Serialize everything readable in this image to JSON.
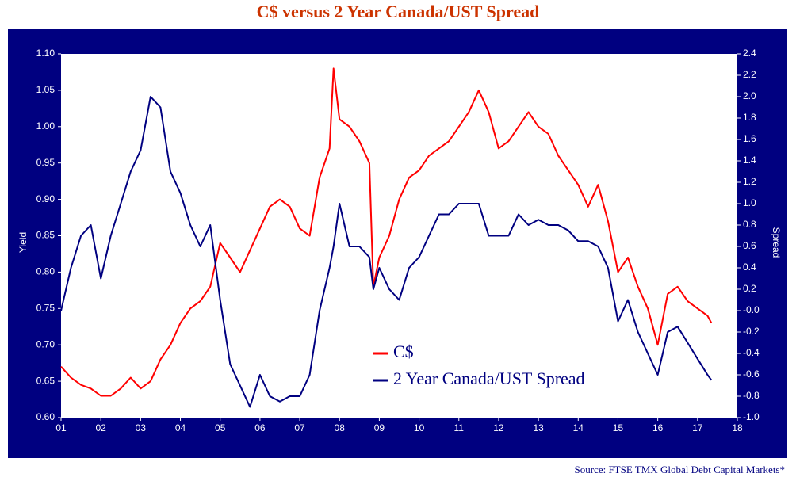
{
  "chart_data": {
    "type": "line",
    "title": "C$ versus 2 Year Canada/UST Spread",
    "y_label": "Yield",
    "y2_label": "Spread",
    "source": "Source: FTSE TMX Global Debt Capital Markets*",
    "x": [
      1.0,
      1.25,
      1.5,
      1.75,
      2.0,
      2.25,
      2.5,
      2.75,
      3.0,
      3.25,
      3.5,
      3.75,
      4.0,
      4.25,
      4.5,
      4.75,
      5.0,
      5.25,
      5.5,
      5.75,
      6.0,
      6.25,
      6.5,
      6.75,
      7.0,
      7.25,
      7.5,
      7.75,
      7.85,
      8.0,
      8.25,
      8.5,
      8.75,
      8.85,
      9.0,
      9.25,
      9.5,
      9.75,
      10.0,
      10.25,
      10.5,
      10.75,
      11.0,
      11.25,
      11.5,
      11.75,
      12.0,
      12.25,
      12.5,
      12.75,
      13.0,
      13.25,
      13.5,
      13.75,
      14.0,
      14.25,
      14.5,
      14.75,
      15.0,
      15.25,
      15.5,
      15.75,
      16.0,
      16.25,
      16.5,
      16.75,
      17.0,
      17.25,
      17.35
    ],
    "series": [
      {
        "name": "C$",
        "color": "#ff0000",
        "axis": "y",
        "values": [
          0.67,
          0.655,
          0.645,
          0.64,
          0.63,
          0.63,
          0.64,
          0.655,
          0.64,
          0.65,
          0.68,
          0.7,
          0.73,
          0.75,
          0.76,
          0.78,
          0.84,
          0.82,
          0.8,
          0.83,
          0.86,
          0.89,
          0.9,
          0.89,
          0.86,
          0.85,
          0.93,
          0.97,
          1.08,
          1.01,
          1.0,
          0.98,
          0.95,
          0.78,
          0.82,
          0.85,
          0.9,
          0.93,
          0.94,
          0.96,
          0.97,
          0.98,
          1.0,
          1.02,
          1.05,
          1.02,
          0.97,
          0.98,
          1.0,
          1.02,
          1.0,
          0.99,
          0.96,
          0.94,
          0.92,
          0.89,
          0.92,
          0.87,
          0.8,
          0.82,
          0.78,
          0.75,
          0.7,
          0.77,
          0.78,
          0.76,
          0.75,
          0.74,
          0.73
        ]
      },
      {
        "name": "2 Year Canada/UST Spread",
        "color": "#000080",
        "axis": "y2",
        "values": [
          0.0,
          0.4,
          0.7,
          0.8,
          0.3,
          0.7,
          1.0,
          1.3,
          1.5,
          2.0,
          1.9,
          1.3,
          1.1,
          0.8,
          0.6,
          0.8,
          0.1,
          -0.5,
          -0.7,
          -0.9,
          -0.6,
          -0.8,
          -0.85,
          -0.8,
          -0.8,
          -0.6,
          0.0,
          0.4,
          0.6,
          1.0,
          0.6,
          0.6,
          0.5,
          0.2,
          0.4,
          0.2,
          0.1,
          0.4,
          0.5,
          0.7,
          0.9,
          0.9,
          1.0,
          1.0,
          1.0,
          0.7,
          0.7,
          0.7,
          0.9,
          0.8,
          0.85,
          0.8,
          0.8,
          0.75,
          0.65,
          0.65,
          0.6,
          0.4,
          -0.1,
          0.1,
          -0.2,
          -0.4,
          -0.6,
          -0.2,
          -0.15,
          -0.3,
          -0.45,
          -0.6,
          -0.65
        ]
      }
    ],
    "xlim": [
      1,
      18
    ],
    "xticks": [
      {
        "value": 1,
        "label": "01"
      },
      {
        "value": 2,
        "label": "02"
      },
      {
        "value": 3,
        "label": "03"
      },
      {
        "value": 4,
        "label": "04"
      },
      {
        "value": 5,
        "label": "05"
      },
      {
        "value": 6,
        "label": "06"
      },
      {
        "value": 7,
        "label": "07"
      },
      {
        "value": 8,
        "label": "08"
      },
      {
        "value": 9,
        "label": "09"
      },
      10,
      11,
      12,
      13,
      14,
      15,
      16,
      17,
      18
    ],
    "ylim": [
      0.6,
      1.1
    ],
    "yticks": [
      {
        "value": 0.6,
        "label": "0.60"
      },
      0.65,
      {
        "value": 0.7,
        "label": "0.70"
      },
      0.75,
      {
        "value": 0.8,
        "label": "0.80"
      },
      0.85,
      {
        "value": 0.9,
        "label": "0.90"
      },
      0.95,
      {
        "value": 1.0,
        "label": "1.00"
      },
      1.05,
      {
        "value": 1.1,
        "label": "1.10"
      }
    ],
    "y2lim": [
      -1.0,
      2.4
    ],
    "y2ticks": [
      {
        "value": -1.0,
        "label": "-1.0"
      },
      -0.8,
      -0.6,
      -0.4,
      -0.2,
      {
        "value": 0,
        "label": "-0.0"
      },
      0.2,
      0.4,
      0.6,
      0.8,
      {
        "value": 1.0,
        "label": "1.0"
      },
      1.2,
      1.4,
      1.6,
      1.8,
      {
        "value": 2.0,
        "label": "2.0"
      },
      2.2,
      2.4
    ]
  }
}
